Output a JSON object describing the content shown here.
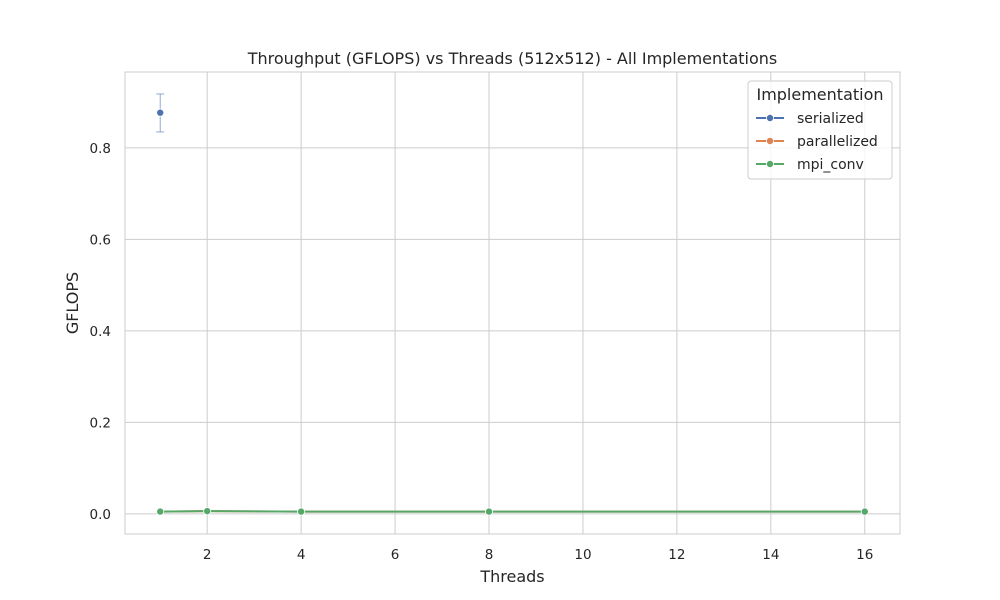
{
  "chart_data": {
    "type": "line",
    "title": "Throughput (GFLOPS) vs Threads (512x512) - All Implementations",
    "xlabel": "Threads",
    "ylabel": "GFLOPS",
    "xlim": [
      0.25,
      16.75
    ],
    "ylim": [
      -0.044,
      0.966
    ],
    "xticks": [
      2,
      4,
      6,
      8,
      10,
      12,
      14,
      16
    ],
    "yticks": [
      0.0,
      0.2,
      0.4,
      0.6,
      0.8
    ],
    "xtick_labels": [
      "2",
      "4",
      "6",
      "8",
      "10",
      "12",
      "14",
      "16"
    ],
    "ytick_labels": [
      "0.0",
      "0.2",
      "0.4",
      "0.6",
      "0.8"
    ],
    "grid": true,
    "legend": {
      "title": "Implementation",
      "placement": "top-right"
    },
    "series": [
      {
        "name": "serialized",
        "color": "#4c72b0",
        "x": [
          1
        ],
        "y": [
          0.877
        ],
        "error": [
          [
            0.835,
            0.918
          ]
        ]
      },
      {
        "name": "parallelized",
        "color": "#dd8452",
        "x": [
          1,
          2,
          4,
          8,
          16
        ],
        "y": [
          0.005,
          0.006,
          0.005,
          0.005,
          0.005
        ]
      },
      {
        "name": "mpi_conv",
        "color": "#55a868",
        "x": [
          1,
          2,
          4,
          8,
          16
        ],
        "y": [
          0.005,
          0.006,
          0.005,
          0.005,
          0.005
        ]
      }
    ]
  }
}
